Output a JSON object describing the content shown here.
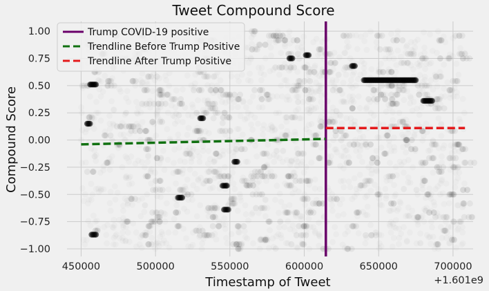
{
  "chart_data": {
    "type": "scatter",
    "title": "Tweet Compound Score",
    "xlabel": "Timestamp of Tweet",
    "ylabel": "Compound Score",
    "x_offset_label": "+1.601e9",
    "xlim": [
      440500,
      713500
    ],
    "ylim": [
      -1.07,
      1.09
    ],
    "xticks": [
      450000,
      500000,
      550000,
      600000,
      650000,
      700000
    ],
    "xtick_labels": [
      "450000",
      "500000",
      "550000",
      "600000",
      "650000",
      "700000"
    ],
    "yticks": [
      1.0,
      0.75,
      0.5,
      0.25,
      0.0,
      -0.25,
      -0.5,
      -0.75,
      -1.0
    ],
    "ytick_labels": [
      "1.00",
      "0.75",
      "0.50",
      "0.25",
      "0.00",
      "−0.25",
      "−0.50",
      "−0.75",
      "−1.00"
    ],
    "grid": true,
    "legend_position": "top-left",
    "legend": [
      {
        "label": "Trump COVID-19 positive",
        "color": "#6a006a",
        "style": "solid"
      },
      {
        "label": "Trendline Before Trump Positive",
        "color": "#107010",
        "style": "dashed"
      },
      {
        "label": "Trendline After Trump Positive",
        "color": "#e41a1c",
        "style": "dashed"
      }
    ],
    "event_line": {
      "x": 614500,
      "color": "#6a006a"
    },
    "trend_before": {
      "x": [
        450000,
        614500
      ],
      "y": [
        -0.04,
        0.01
      ],
      "color": "#107010"
    },
    "trend_after": {
      "x": [
        614500,
        708000
      ],
      "y": [
        0.11,
        0.11
      ],
      "color": "#e41a1c"
    },
    "scatter_x_range": [
      450000,
      708000
    ],
    "scatter_color": "#000000",
    "dense_clusters": [
      {
        "x": [
          640000,
          675000
        ],
        "y": 0.55
      },
      {
        "x": [
          680000,
          686000
        ],
        "y": 0.36
      },
      {
        "x": [
          456000,
          460000
        ],
        "y": 0.51
      },
      {
        "x": [
          454000,
          456000
        ],
        "y": 0.15
      },
      {
        "x": [
          457000,
          460000
        ],
        "y": -0.87
      },
      {
        "x": [
          530000,
          532000
        ],
        "y": 0.2
      },
      {
        "x": [
          632000,
          634000
        ],
        "y": 0.68
      },
      {
        "x": [
          601000,
          603000
        ],
        "y": 0.78
      },
      {
        "x": [
          590000,
          592000
        ],
        "y": 0.75
      },
      {
        "x": [
          553000,
          555000
        ],
        "y": -0.2
      },
      {
        "x": [
          545000,
          548000
        ],
        "y": -0.42
      },
      {
        "x": [
          546000,
          549000
        ],
        "y": -0.64
      },
      {
        "x": [
          515000,
          518000
        ],
        "y": -0.53
      }
    ]
  }
}
